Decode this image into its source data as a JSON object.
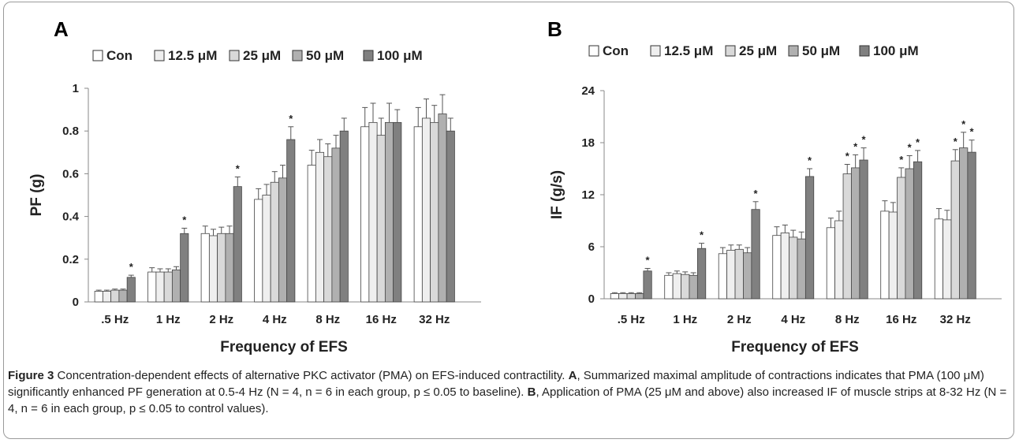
{
  "figure": {
    "caption_label": "Figure 3",
    "caption_text": " Concentration-dependent effects of alternative PKC activator (PMA) on EFS-induced contractility. ",
    "caption_a_label": "A",
    "caption_a_text": ", Summarized maximal amplitude of contractions indicates that PMA (100 μM) significantly enhanced PF generation at 0.5-4 Hz (N = 4, n = 6 in each group, p ≤ 0.05 to baseline). ",
    "caption_b_label": "B",
    "caption_b_text": ", Application of PMA (25 μM and above) also increased IF of muscle strips at 8-32 Hz (N = 4, n = 6 in each group, p ≤ 0.05 to control values)."
  },
  "chart_data": [
    {
      "panel": "A",
      "type": "bar",
      "title": "",
      "xlabel": "Frequency of EFS",
      "ylabel": "PF (g)",
      "categories": [
        ".5 Hz",
        "1 Hz",
        "2 Hz",
        "4 Hz",
        "8 Hz",
        "16 Hz",
        "32 Hz"
      ],
      "ylim": [
        0,
        1
      ],
      "yticks": [
        0,
        0.2,
        0.4,
        0.6,
        0.8,
        1
      ],
      "ytick_labels": [
        "0",
        "0.2",
        "0.4",
        "0.6",
        "0.8",
        "1"
      ],
      "legend_position": "top",
      "grid": false,
      "series": [
        {
          "name": "Con",
          "color": "#ffffff",
          "values": [
            0.05,
            0.14,
            0.32,
            0.48,
            0.64,
            0.82,
            0.82
          ],
          "errors": [
            0.005,
            0.02,
            0.035,
            0.05,
            0.07,
            0.09,
            0.09
          ]
        },
        {
          "name": "12.5 μM",
          "color": "#efefef",
          "values": [
            0.05,
            0.14,
            0.31,
            0.5,
            0.7,
            0.84,
            0.86
          ],
          "errors": [
            0.005,
            0.015,
            0.03,
            0.05,
            0.06,
            0.09,
            0.09
          ]
        },
        {
          "name": "25 μM",
          "color": "#d9d9d9",
          "values": [
            0.055,
            0.14,
            0.32,
            0.56,
            0.68,
            0.78,
            0.84
          ],
          "errors": [
            0.005,
            0.015,
            0.03,
            0.05,
            0.06,
            0.08,
            0.08
          ]
        },
        {
          "name": "50 μM",
          "color": "#b0b0b0",
          "values": [
            0.055,
            0.15,
            0.32,
            0.58,
            0.72,
            0.84,
            0.88
          ],
          "errors": [
            0.005,
            0.015,
            0.035,
            0.06,
            0.06,
            0.09,
            0.09
          ]
        },
        {
          "name": "100 μM",
          "color": "#808080",
          "values": [
            0.115,
            0.32,
            0.54,
            0.76,
            0.8,
            0.84,
            0.8
          ],
          "errors": [
            0.01,
            0.025,
            0.045,
            0.06,
            0.06,
            0.06,
            0.06
          ]
        }
      ],
      "significance": [
        {
          "category": ".5 Hz",
          "series": "100 μM",
          "label": "*"
        },
        {
          "category": "1 Hz",
          "series": "100 μM",
          "label": "*"
        },
        {
          "category": "2 Hz",
          "series": "100 μM",
          "label": "*"
        },
        {
          "category": "4 Hz",
          "series": "100 μM",
          "label": "*"
        }
      ]
    },
    {
      "panel": "B",
      "type": "bar",
      "title": "",
      "xlabel": "Frequency of EFS",
      "ylabel": "IF (g/s)",
      "categories": [
        ".5 Hz",
        "1 Hz",
        "2  Hz",
        "4 Hz",
        "8 Hz",
        "16 Hz",
        "32 Hz"
      ],
      "ylim": [
        0,
        24
      ],
      "yticks": [
        0,
        6,
        12,
        18,
        24
      ],
      "ytick_labels": [
        "0",
        "6",
        "12",
        "18",
        "24"
      ],
      "legend_position": "top",
      "grid": false,
      "series": [
        {
          "name": "Con",
          "color": "#ffffff",
          "values": [
            0.6,
            2.7,
            5.2,
            7.3,
            8.2,
            10.1,
            9.2
          ],
          "errors": [
            0.1,
            0.3,
            0.7,
            1.0,
            1.1,
            1.2,
            1.2
          ]
        },
        {
          "name": "12.5 μM",
          "color": "#efefef",
          "values": [
            0.6,
            2.9,
            5.6,
            7.6,
            9.0,
            10.0,
            9.1
          ],
          "errors": [
            0.1,
            0.3,
            0.6,
            0.9,
            1.1,
            1.1,
            1.1
          ]
        },
        {
          "name": "25 μM",
          "color": "#d9d9d9",
          "values": [
            0.6,
            2.8,
            5.7,
            7.1,
            14.4,
            14.0,
            15.9
          ],
          "errors": [
            0.1,
            0.3,
            0.5,
            0.8,
            1.1,
            1.1,
            1.3
          ]
        },
        {
          "name": "50 μM",
          "color": "#b0b0b0",
          "values": [
            0.6,
            2.7,
            5.3,
            6.9,
            15.1,
            15.0,
            17.4
          ],
          "errors": [
            0.1,
            0.3,
            0.6,
            0.8,
            1.5,
            1.5,
            1.8
          ]
        },
        {
          "name": "100 μM",
          "color": "#808080",
          "values": [
            3.2,
            5.8,
            10.3,
            14.1,
            16.0,
            15.8,
            16.9
          ],
          "errors": [
            0.3,
            0.6,
            0.9,
            0.9,
            1.4,
            1.3,
            1.4
          ]
        }
      ],
      "significance": [
        {
          "category": ".5 Hz",
          "series": "100 μM",
          "label": "*"
        },
        {
          "category": "1 Hz",
          "series": "100 μM",
          "label": "*"
        },
        {
          "category": "2  Hz",
          "series": "100 μM",
          "label": "*"
        },
        {
          "category": "4 Hz",
          "series": "100 μM",
          "label": "*"
        },
        {
          "category": "8 Hz",
          "series": "25 μM",
          "label": "*"
        },
        {
          "category": "8 Hz",
          "series": "50 μM",
          "label": "*"
        },
        {
          "category": "8 Hz",
          "series": "100 μM",
          "label": "*"
        },
        {
          "category": "16 Hz",
          "series": "25 μM",
          "label": "*"
        },
        {
          "category": "16 Hz",
          "series": "50 μM",
          "label": "*"
        },
        {
          "category": "16 Hz",
          "series": "100 μM",
          "label": "*"
        },
        {
          "category": "32 Hz",
          "series": "25 μM",
          "label": "*"
        },
        {
          "category": "32 Hz",
          "series": "50 μM",
          "label": "*"
        },
        {
          "category": "32 Hz",
          "series": "100 μM",
          "label": "*"
        }
      ]
    }
  ]
}
